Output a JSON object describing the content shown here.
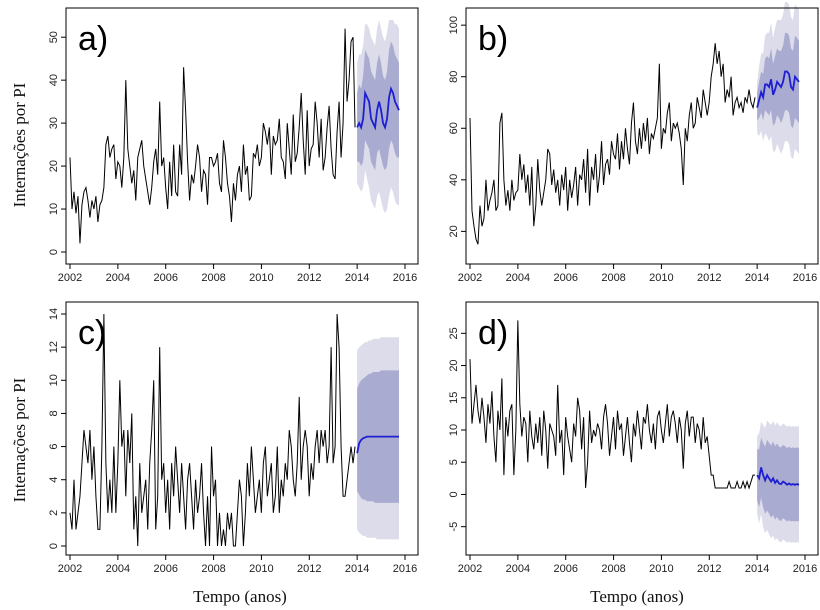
{
  "figure": {
    "ylabel": "Internações por PI",
    "xlabel": "Tempo (anos)"
  },
  "chart_data": [
    {
      "type": "line",
      "panel_label": "a)",
      "xlim": [
        2002,
        2016
      ],
      "ylim": [
        0,
        54
      ],
      "x_ticks": [
        2002,
        2004,
        2006,
        2008,
        2010,
        2012,
        2014,
        2016
      ],
      "y_ticks": [
        0,
        10,
        20,
        30,
        40,
        50
      ],
      "ylabel": "Internações por PI",
      "observed": {
        "start": 2002.0,
        "step": 0.0833,
        "values": [
          22,
          10,
          14,
          9,
          13,
          2,
          11,
          14,
          15,
          12,
          8,
          12,
          10,
          13,
          7,
          11,
          12,
          15,
          25,
          27,
          22,
          24,
          25,
          17,
          21,
          20,
          15,
          22,
          40,
          24,
          20,
          16,
          19,
          12,
          22,
          24,
          26,
          20,
          17,
          14,
          11,
          15,
          21,
          24,
          18,
          35,
          20,
          22,
          15,
          10,
          21,
          13,
          25,
          14,
          13,
          25,
          18,
          43,
          33,
          21,
          12,
          18,
          16,
          20,
          25,
          22,
          14,
          19,
          18,
          11,
          22,
          22,
          20,
          21,
          23,
          16,
          14,
          26,
          22,
          16,
          13,
          7,
          16,
          12,
          18,
          20,
          14,
          25,
          18,
          20,
          12,
          13,
          23,
          22,
          25,
          20,
          22,
          30,
          28,
          25,
          29,
          18,
          27,
          25,
          26,
          31,
          22,
          21,
          17,
          30,
          24,
          18,
          32,
          21,
          23,
          29,
          37,
          26,
          18,
          33,
          20,
          24,
          25,
          35,
          30,
          22,
          31,
          19,
          22,
          29,
          34,
          24,
          18,
          17,
          28,
          35,
          22,
          30,
          52,
          35,
          40,
          49,
          50,
          29
        ]
      },
      "forecast": {
        "start": 2014.0,
        "step": 0.0833,
        "mean": [
          29,
          30,
          29,
          31,
          37,
          36,
          35,
          31,
          30,
          29,
          33,
          35,
          33,
          30,
          29,
          31,
          36,
          38,
          37,
          35,
          34,
          33
        ],
        "lo80": [
          21,
          21,
          20,
          21,
          26,
          25,
          24,
          21,
          20,
          19,
          23,
          24,
          22,
          20,
          19,
          20,
          24,
          26,
          25,
          23,
          22,
          22
        ],
        "hi80": [
          37,
          39,
          38,
          41,
          47,
          46,
          45,
          42,
          41,
          40,
          44,
          46,
          44,
          41,
          40,
          42,
          47,
          49,
          48,
          46,
          45,
          44
        ],
        "lo95": [
          16,
          15,
          14,
          15,
          19,
          17,
          15,
          12,
          11,
          10,
          13,
          14,
          12,
          10,
          9,
          10,
          13,
          15,
          14,
          12,
          11,
          11
        ],
        "hi95": [
          44,
          46,
          46,
          48,
          53,
          53,
          52,
          50,
          49,
          48,
          52,
          54,
          52,
          50,
          49,
          51,
          54,
          54,
          54,
          53,
          53,
          52
        ]
      }
    },
    {
      "type": "line",
      "panel_label": "b)",
      "xlim": [
        2002,
        2016
      ],
      "ylim": [
        12,
        102
      ],
      "x_ticks": [
        2002,
        2004,
        2006,
        2008,
        2010,
        2012,
        2014,
        2016
      ],
      "y_ticks": [
        20,
        40,
        60,
        80,
        100
      ],
      "observed": {
        "start": 2002.0,
        "step": 0.0833,
        "values": [
          64,
          28,
          22,
          17,
          15,
          30,
          22,
          25,
          40,
          28,
          32,
          35,
          40,
          28,
          30,
          62,
          66,
          40,
          30,
          36,
          28,
          40,
          32,
          35,
          36,
          50,
          40,
          46,
          35,
          42,
          30,
          45,
          22,
          30,
          48,
          36,
          30,
          35,
          40,
          52,
          50,
          38,
          44,
          35,
          40,
          30,
          42,
          36,
          45,
          28,
          40,
          33,
          38,
          45,
          30,
          42,
          40,
          48,
          35,
          52,
          30,
          45,
          40,
          50,
          35,
          42,
          55,
          38,
          46,
          48,
          42,
          55,
          50,
          48,
          58,
          44,
          55,
          48,
          60,
          52,
          46,
          62,
          70,
          55,
          50,
          60,
          52,
          62,
          55,
          64,
          50,
          58,
          56,
          60,
          64,
          85,
          52,
          60,
          58,
          66,
          70,
          55,
          62,
          60,
          62,
          58,
          52,
          38,
          60,
          55,
          65,
          70,
          60,
          62,
          72,
          68,
          64,
          75,
          70,
          65,
          70,
          80,
          85,
          93,
          85,
          90,
          80,
          85,
          70,
          75,
          72,
          80,
          65,
          70,
          72,
          68,
          70,
          66,
          72,
          70,
          75,
          70,
          68,
          72
        ]
      },
      "forecast": {
        "start": 2014.0,
        "step": 0.0833,
        "mean": [
          68,
          71,
          74,
          72,
          77,
          77,
          76,
          79,
          73,
          75,
          78,
          77,
          76,
          78,
          82,
          82,
          81,
          76,
          75,
          80,
          79,
          78
        ],
        "lo80": [
          63,
          64,
          66,
          63,
          67,
          66,
          65,
          67,
          61,
          62,
          65,
          64,
          62,
          64,
          67,
          67,
          66,
          61,
          60,
          64,
          63,
          62
        ],
        "hi80": [
          74,
          78,
          82,
          81,
          87,
          88,
          87,
          91,
          85,
          88,
          91,
          90,
          90,
          92,
          97,
          97,
          96,
          91,
          90,
          96,
          95,
          94
        ],
        "lo95": [
          58,
          57,
          59,
          55,
          58,
          57,
          55,
          57,
          51,
          51,
          54,
          52,
          50,
          52,
          55,
          55,
          54,
          49,
          48,
          52,
          51,
          50
        ],
        "hi95": [
          78,
          84,
          89,
          89,
          96,
          97,
          97,
          101,
          95,
          99,
          102,
          102,
          102,
          104,
          109,
          109,
          108,
          103,
          102,
          108,
          107,
          106
        ]
      }
    },
    {
      "type": "line",
      "panel_label": "c)",
      "xlim": [
        2002,
        2016
      ],
      "ylim": [
        0,
        14
      ],
      "x_ticks": [
        2002,
        2004,
        2006,
        2008,
        2010,
        2012,
        2014,
        2016
      ],
      "y_ticks": [
        0,
        2,
        4,
        6,
        8,
        10,
        12,
        14
      ],
      "ylabel": "Internações por PI",
      "observed": {
        "start": 2002.0,
        "step": 0.0833,
        "values": [
          2,
          1,
          4,
          1,
          2,
          3,
          5,
          7,
          6,
          5,
          7,
          4,
          6,
          3,
          1,
          1,
          6,
          14,
          5,
          2,
          4,
          2,
          6,
          2,
          5,
          10,
          6,
          7,
          3,
          7,
          5,
          8,
          1,
          3,
          0,
          5,
          2,
          3,
          4,
          1,
          5,
          7,
          10,
          1,
          3,
          12,
          4,
          5,
          2,
          4,
          1,
          5,
          3,
          6,
          4,
          2,
          5,
          3,
          1,
          4,
          5,
          3,
          1,
          4,
          2,
          3,
          5,
          2,
          0,
          3,
          0,
          6,
          3,
          4,
          0,
          2,
          0,
          1,
          0,
          2,
          1,
          2,
          0,
          0,
          2,
          4,
          3,
          0,
          2,
          5,
          3,
          6,
          4,
          2,
          3,
          4,
          2,
          5,
          6,
          3,
          4,
          5,
          2,
          3,
          6,
          2,
          4,
          3,
          5,
          4,
          7,
          6,
          4,
          3,
          5,
          9,
          4,
          6,
          7,
          6,
          3,
          5,
          4,
          6,
          7,
          5,
          7,
          6,
          7,
          5,
          6,
          12,
          5,
          6,
          14,
          12,
          6,
          3,
          3,
          4,
          5,
          6,
          5,
          6
        ]
      },
      "forecast": {
        "start": 2014.0,
        "step": 0.0833,
        "mean": [
          5.6,
          6.2,
          6.4,
          6.5,
          6.55,
          6.6,
          6.6,
          6.6,
          6.6,
          6.6,
          6.6,
          6.6,
          6.6,
          6.6,
          6.6,
          6.6,
          6.6,
          6.6,
          6.6,
          6.6,
          6.6,
          6.6
        ],
        "lo80": [
          3.3,
          3.1,
          2.9,
          2.8,
          2.8,
          2.7,
          2.7,
          2.7,
          2.7,
          2.6,
          2.6,
          2.6,
          2.6,
          2.6,
          2.6,
          2.6,
          2.6,
          2.6,
          2.6,
          2.6,
          2.6,
          2.6
        ],
        "hi80": [
          9.5,
          9.8,
          10.0,
          10.1,
          10.2,
          10.3,
          10.4,
          10.4,
          10.5,
          10.5,
          10.5,
          10.5,
          10.6,
          10.6,
          10.6,
          10.6,
          10.6,
          10.6,
          10.6,
          10.6,
          10.6,
          10.6
        ],
        "lo95": [
          1.0,
          0.8,
          0.7,
          0.6,
          0.6,
          0.5,
          0.5,
          0.5,
          0.5,
          0.5,
          0.4,
          0.4,
          0.4,
          0.4,
          0.4,
          0.4,
          0.4,
          0.4,
          0.4,
          0.4,
          0.4,
          0.4
        ],
        "hi95": [
          11.8,
          12.0,
          12.1,
          12.2,
          12.3,
          12.3,
          12.4,
          12.4,
          12.5,
          12.5,
          12.5,
          12.5,
          12.6,
          12.6,
          12.6,
          12.6,
          12.6,
          12.6,
          12.6,
          12.6,
          12.6,
          12.6
        ]
      }
    },
    {
      "type": "line",
      "panel_label": "d)",
      "xlim": [
        2002,
        2016
      ],
      "ylim": [
        -8,
        28
      ],
      "x_ticks": [
        2002,
        2004,
        2006,
        2008,
        2010,
        2012,
        2014,
        2016
      ],
      "y_ticks": [
        -5,
        0,
        5,
        10,
        15,
        20,
        25
      ],
      "observed": {
        "start": 2002.0,
        "step": 0.0833,
        "values": [
          21,
          11,
          14,
          17,
          13,
          11,
          15,
          12,
          8,
          14,
          11,
          16,
          9,
          5,
          13,
          10,
          18,
          3,
          12,
          9,
          13,
          14,
          3,
          10,
          27,
          14,
          9,
          12,
          11,
          5,
          13,
          9,
          7,
          11,
          8,
          12,
          6,
          13,
          10,
          4,
          11,
          10,
          9,
          6,
          17,
          8,
          10,
          3,
          12,
          9,
          7,
          5,
          11,
          9,
          15,
          13,
          7,
          12,
          1,
          5,
          13,
          8,
          10,
          9,
          11,
          10,
          7,
          12,
          14,
          11,
          6,
          9,
          12,
          7,
          13,
          10,
          11,
          6,
          9,
          12,
          8,
          5,
          11,
          9,
          13,
          10,
          7,
          12,
          11,
          14,
          10,
          8,
          11,
          7,
          12,
          13,
          10,
          8,
          11,
          14,
          9,
          12,
          13,
          11,
          8,
          12,
          10,
          4,
          11,
          13,
          9,
          12,
          12,
          8,
          11,
          10,
          7,
          12,
          8,
          9,
          6,
          3,
          3,
          1,
          1,
          1,
          1,
          1,
          1,
          1,
          2,
          1,
          1,
          1,
          2,
          1,
          1,
          2,
          1,
          2,
          1,
          2,
          3,
          3
        ]
      },
      "forecast": {
        "start": 2014.0,
        "step": 0.0833,
        "mean": [
          3.0,
          2.5,
          4.2,
          3.0,
          2.2,
          3.0,
          2.5,
          2.0,
          2.5,
          1.8,
          2.2,
          1.7,
          1.6,
          2.0,
          1.8,
          1.5,
          1.7,
          1.5,
          1.6,
          1.5,
          1.6,
          1.5
        ],
        "lo80": [
          -1.0,
          -2.0,
          -0.5,
          -2.0,
          -3.0,
          -2.5,
          -3.0,
          -3.6,
          -3.2,
          -3.9,
          -3.5,
          -4.0,
          -4.1,
          -3.7,
          -3.9,
          -4.2,
          -4.0,
          -4.2,
          -4.1,
          -4.2,
          -4.1,
          -4.2
        ],
        "hi80": [
          7.0,
          7.0,
          8.8,
          8.0,
          7.4,
          8.5,
          8.0,
          7.6,
          8.2,
          7.5,
          7.9,
          7.4,
          7.3,
          7.7,
          7.5,
          7.2,
          7.4,
          7.2,
          7.3,
          7.2,
          7.3,
          7.2
        ],
        "lo95": [
          -3.0,
          -4.5,
          -3.0,
          -5.0,
          -6.0,
          -5.5,
          -6.2,
          -6.8,
          -6.4,
          -7.1,
          -6.8,
          -7.3,
          -7.4,
          -7.0,
          -7.2,
          -7.5,
          -7.3,
          -7.5,
          -7.4,
          -7.5,
          -7.4,
          -7.5
        ],
        "hi95": [
          9.0,
          9.5,
          11.3,
          10.8,
          10.3,
          11.5,
          11.1,
          10.8,
          11.4,
          10.7,
          11.2,
          10.7,
          10.6,
          11.0,
          10.8,
          10.5,
          10.7,
          10.5,
          10.6,
          10.5,
          10.6,
          10.5
        ]
      }
    }
  ],
  "colors": {
    "observed_line": "#000000",
    "forecast_line": "#1e1ed2",
    "band80": "#a9acd0",
    "band95": "#dcdcea",
    "frame": "#000000"
  }
}
